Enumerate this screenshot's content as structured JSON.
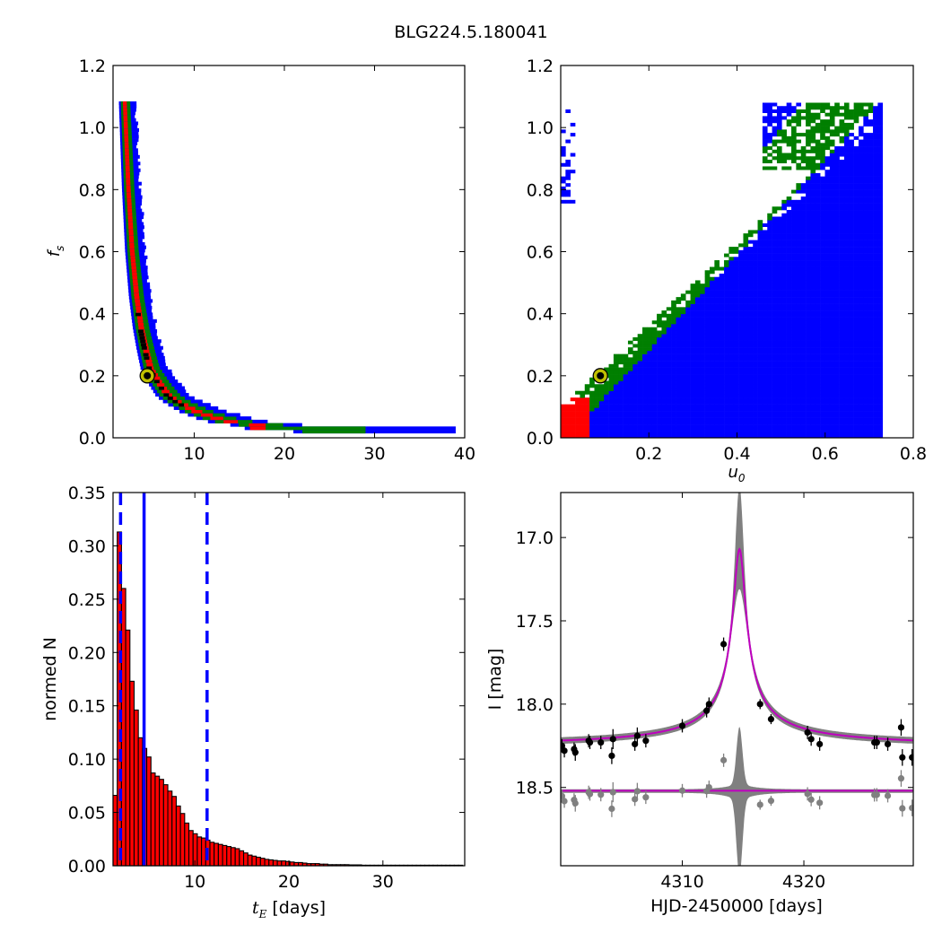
{
  "figure": {
    "suptitle": "BLG224.5.180041"
  },
  "colors": {
    "blue": "#0000ff",
    "green": "#007f00",
    "red": "#ff0000",
    "black": "#000000",
    "marker_fill": "#bfbf00",
    "band_grey": "#808080",
    "model_magenta": "#bf00bf",
    "residual_grey": "#808080"
  },
  "chart_data": [
    {
      "panel": "top-left",
      "type": "heatmap",
      "title": "",
      "xlabel": "",
      "ylabel": "f_s",
      "ylabel_display": "f",
      "ylabel_sub": "s",
      "xlim": [
        1,
        40
      ],
      "ylim": [
        0,
        1.2
      ],
      "xticks": [
        10,
        20,
        30,
        40
      ],
      "xtick_labels": [
        "10",
        "20",
        "30",
        "40"
      ],
      "yticks": [
        0,
        0.2,
        0.4,
        0.6,
        0.8,
        1.0,
        1.2
      ],
      "ytick_labels": [
        "0.0",
        "0.2",
        "0.4",
        "0.6",
        "0.8",
        "1.0",
        "1.2"
      ],
      "legend": "none",
      "grid": false,
      "regions_note": "nested credibility regions: blue outer, green middle, red inner, black core",
      "band_curve_fs_vs_tE": [
        [
          2.2,
          1.08
        ],
        [
          2.6,
          0.8
        ],
        [
          3.0,
          0.6
        ],
        [
          3.5,
          0.45
        ],
        [
          4.0,
          0.35
        ],
        [
          4.5,
          0.28
        ],
        [
          5.0,
          0.22
        ],
        [
          6.0,
          0.17
        ],
        [
          7.0,
          0.13
        ],
        [
          8.0,
          0.11
        ],
        [
          10.0,
          0.08
        ],
        [
          13.0,
          0.05
        ],
        [
          17.0,
          0.035
        ],
        [
          22.0,
          0.025
        ],
        [
          28.0,
          0.02
        ],
        [
          39.0,
          0.02
        ]
      ],
      "outer_region_max_tE": 39,
      "best_fit": {
        "x": 4.8,
        "y": 0.2
      }
    },
    {
      "panel": "top-right",
      "type": "heatmap",
      "title": "",
      "xlabel": "u_0",
      "xlabel_display": "u",
      "xlabel_sub": "0",
      "ylabel": "",
      "xlim": [
        0,
        0.8
      ],
      "ylim": [
        0,
        1.2
      ],
      "xticks": [
        0.2,
        0.4,
        0.6,
        0.8
      ],
      "xtick_labels": [
        "0.2",
        "0.4",
        "0.6",
        "0.8"
      ],
      "yticks": [
        0,
        0.2,
        0.4,
        0.6,
        0.8,
        1.0,
        1.2
      ],
      "ytick_labels": [
        "0.0",
        "0.2",
        "0.4",
        "0.6",
        "0.8",
        "1.0",
        "1.2"
      ],
      "legend": "none",
      "grid": false,
      "regions_note": "nested credibility regions: blue outer, green middle, red inner",
      "blue_region_max_u0": 0.72,
      "max_fs": 1.08,
      "best_fit": {
        "x": 0.09,
        "y": 0.2
      }
    },
    {
      "panel": "bottom-left",
      "type": "bar",
      "title": "",
      "xlabel": "t_E [days]",
      "xlabel_display": "t",
      "xlabel_sub": "E",
      "xlabel_suffix": " [days]",
      "ylabel": "normed N",
      "xlim": [
        1.3,
        38.7
      ],
      "ylim": [
        0,
        0.35
      ],
      "xticks": [
        10,
        20,
        30
      ],
      "xtick_labels": [
        "10",
        "20",
        "30"
      ],
      "yticks": [
        0,
        0.05,
        0.1,
        0.15,
        0.2,
        0.25,
        0.3,
        0.35
      ],
      "ytick_labels": [
        "0.00",
        "0.05",
        "0.10",
        "0.15",
        "0.20",
        "0.25",
        "0.30",
        "0.35"
      ],
      "legend": "none",
      "grid": false,
      "bin_start": 1.3,
      "bin_width": 0.448,
      "values": [
        0.066,
        0.313,
        0.26,
        0.221,
        0.173,
        0.146,
        0.12,
        0.11,
        0.102,
        0.087,
        0.084,
        0.081,
        0.076,
        0.07,
        0.065,
        0.056,
        0.049,
        0.04,
        0.033,
        0.03,
        0.027,
        0.026,
        0.024,
        0.022,
        0.021,
        0.02,
        0.019,
        0.018,
        0.017,
        0.016,
        0.014,
        0.012,
        0.01,
        0.009,
        0.008,
        0.007,
        0.006,
        0.0055,
        0.005,
        0.0045,
        0.0045,
        0.004,
        0.0035,
        0.003,
        0.003,
        0.0025,
        0.002,
        0.002,
        0.002,
        0.0015,
        0.0015,
        0.001,
        0.001,
        0.001,
        0.001,
        0.001,
        0.0008,
        0.0008,
        0.0008,
        0.0005,
        0.0005,
        0.0005,
        0.0005,
        0.0005,
        0.0005,
        0.0005,
        0.0005,
        0.0005,
        0.0005,
        0.0005,
        0.0005,
        0.0005,
        0.0005,
        0.0005,
        0.0005,
        0.0005,
        0.0005,
        0.0005,
        0.0005,
        0.0005,
        0.0005,
        0.0005,
        0.0005
      ],
      "vlines": [
        {
          "x": 2.1,
          "style": "dashed"
        },
        {
          "x": 4.6,
          "style": "solid"
        },
        {
          "x": 11.3,
          "style": "dashed"
        }
      ]
    },
    {
      "panel": "bottom-right",
      "type": "line",
      "title": "",
      "xlabel": "HJD-2450000 [days]",
      "ylabel": "I [mag]",
      "xlim": [
        4300,
        4329
      ],
      "ylim": [
        18.97,
        16.73
      ],
      "y_inverted": true,
      "xticks": [
        4310,
        4320
      ],
      "xtick_labels": [
        "4310",
        "4320"
      ],
      "yticks": [
        17.0,
        17.5,
        18.0,
        18.5
      ],
      "ytick_labels": [
        "17.0",
        "17.5",
        "18.0",
        "18.5"
      ],
      "legend": "none",
      "grid": false,
      "model": {
        "baseline": 18.26,
        "peak": 17.07,
        "t0": 4314.7,
        "half_width": 0.55,
        "residual_offset": 18.52
      },
      "band": {
        "peak_top": 16.73,
        "peak_bottom": 17.48,
        "width_at_baseline": 0.02
      },
      "points": [
        {
          "x": 4300.1,
          "y": 18.25,
          "err": 0.04
        },
        {
          "x": 4300.3,
          "y": 18.28,
          "err": 0.04
        },
        {
          "x": 4301.1,
          "y": 18.27,
          "err": 0.04
        },
        {
          "x": 4301.2,
          "y": 18.29,
          "err": 0.05
        },
        {
          "x": 4302.3,
          "y": 18.22,
          "err": 0.04
        },
        {
          "x": 4302.4,
          "y": 18.23,
          "err": 0.04
        },
        {
          "x": 4303.3,
          "y": 18.23,
          "err": 0.04
        },
        {
          "x": 4304.2,
          "y": 18.31,
          "err": 0.05
        },
        {
          "x": 4304.3,
          "y": 18.21,
          "err": 0.06
        },
        {
          "x": 4306.1,
          "y": 18.24,
          "err": 0.04
        },
        {
          "x": 4306.3,
          "y": 18.19,
          "err": 0.05
        },
        {
          "x": 4307.0,
          "y": 18.22,
          "err": 0.04
        },
        {
          "x": 4310.0,
          "y": 18.13,
          "err": 0.04
        },
        {
          "x": 4312.0,
          "y": 18.04,
          "err": 0.04
        },
        {
          "x": 4312.2,
          "y": 18.0,
          "err": 0.04
        },
        {
          "x": 4313.4,
          "y": 17.64,
          "err": 0.04
        },
        {
          "x": 4316.4,
          "y": 18.0,
          "err": 0.03
        },
        {
          "x": 4317.3,
          "y": 18.09,
          "err": 0.03
        },
        {
          "x": 4320.3,
          "y": 18.17,
          "err": 0.04
        },
        {
          "x": 4320.6,
          "y": 18.21,
          "err": 0.04
        },
        {
          "x": 4321.3,
          "y": 18.24,
          "err": 0.04
        },
        {
          "x": 4325.8,
          "y": 18.23,
          "err": 0.04
        },
        {
          "x": 4326.0,
          "y": 18.23,
          "err": 0.04
        },
        {
          "x": 4326.9,
          "y": 18.24,
          "err": 0.04
        },
        {
          "x": 4328.0,
          "y": 18.14,
          "err": 0.05
        },
        {
          "x": 4328.1,
          "y": 18.32,
          "err": 0.05
        },
        {
          "x": 4328.9,
          "y": 18.32,
          "err": 0.05
        }
      ]
    }
  ]
}
